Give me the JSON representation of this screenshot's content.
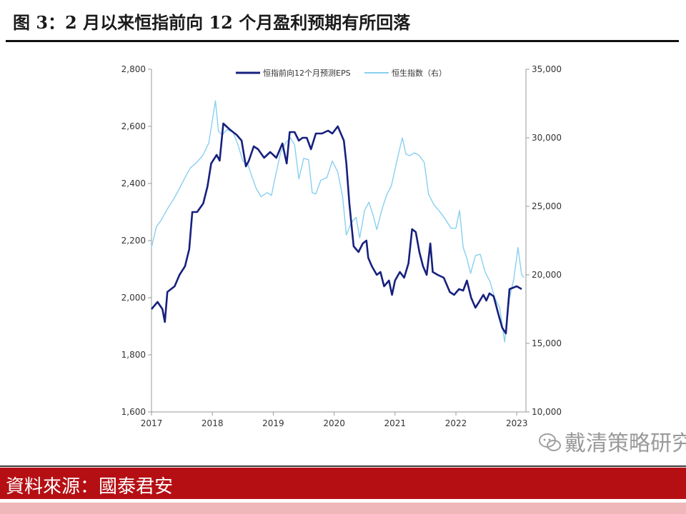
{
  "figure_title": "图 3：2 月以来恒指前向 12 个月盈利预期有所回落",
  "source": "資料來源：國泰君安",
  "watermark": "戴清策略研究",
  "colors": {
    "eps_line": "#16207e",
    "hsi_line": "#89cff0",
    "source_bar": "#b50f14",
    "pink_strip": "#f0b7ba"
  },
  "chart_data": {
    "type": "line",
    "title": "",
    "xlabel": "",
    "ylabel": "",
    "x_ticks": [
      "2017",
      "2018",
      "2019",
      "2020",
      "2021",
      "2022",
      "2023"
    ],
    "left_axis": {
      "min": 1600,
      "max": 2800,
      "ticks": [
        "1,600",
        "1,800",
        "2,000",
        "2,200",
        "2,400",
        "2,600",
        "2,800"
      ]
    },
    "right_axis": {
      "min": 10000,
      "max": 35000,
      "ticks": [
        "10,000",
        "15,000",
        "20,000",
        "25,000",
        "30,000",
        "35,000"
      ]
    },
    "legend_position": "top",
    "grid": false,
    "series": [
      {
        "name": "恒指前向12个月预测EPS",
        "axis": "left",
        "points": [
          [
            2017.0,
            1960
          ],
          [
            2017.1,
            1985
          ],
          [
            2017.18,
            1960
          ],
          [
            2017.22,
            1915
          ],
          [
            2017.26,
            2020
          ],
          [
            2017.38,
            2040
          ],
          [
            2017.46,
            2080
          ],
          [
            2017.55,
            2110
          ],
          [
            2017.62,
            2170
          ],
          [
            2017.67,
            2300
          ],
          [
            2017.75,
            2300
          ],
          [
            2017.85,
            2330
          ],
          [
            2017.92,
            2390
          ],
          [
            2017.98,
            2470
          ],
          [
            2018.07,
            2500
          ],
          [
            2018.12,
            2480
          ],
          [
            2018.18,
            2610
          ],
          [
            2018.28,
            2590
          ],
          [
            2018.4,
            2570
          ],
          [
            2018.48,
            2550
          ],
          [
            2018.55,
            2460
          ],
          [
            2018.6,
            2480
          ],
          [
            2018.68,
            2530
          ],
          [
            2018.75,
            2520
          ],
          [
            2018.85,
            2490
          ],
          [
            2018.95,
            2510
          ],
          [
            2019.05,
            2490
          ],
          [
            2019.15,
            2540
          ],
          [
            2019.22,
            2470
          ],
          [
            2019.27,
            2580
          ],
          [
            2019.35,
            2580
          ],
          [
            2019.42,
            2550
          ],
          [
            2019.48,
            2560
          ],
          [
            2019.55,
            2560
          ],
          [
            2019.62,
            2520
          ],
          [
            2019.7,
            2575
          ],
          [
            2019.8,
            2575
          ],
          [
            2019.9,
            2585
          ],
          [
            2019.97,
            2575
          ],
          [
            2020.06,
            2600
          ],
          [
            2020.1,
            2580
          ],
          [
            2020.16,
            2550
          ],
          [
            2020.2,
            2470
          ],
          [
            2020.25,
            2330
          ],
          [
            2020.32,
            2180
          ],
          [
            2020.4,
            2160
          ],
          [
            2020.47,
            2190
          ],
          [
            2020.53,
            2200
          ],
          [
            2020.56,
            2140
          ],
          [
            2020.62,
            2110
          ],
          [
            2020.7,
            2080
          ],
          [
            2020.76,
            2090
          ],
          [
            2020.82,
            2040
          ],
          [
            2020.9,
            2060
          ],
          [
            2020.95,
            2010
          ],
          [
            2021.0,
            2060
          ],
          [
            2021.08,
            2090
          ],
          [
            2021.15,
            2070
          ],
          [
            2021.22,
            2120
          ],
          [
            2021.28,
            2240
          ],
          [
            2021.34,
            2230
          ],
          [
            2021.4,
            2160
          ],
          [
            2021.46,
            2110
          ],
          [
            2021.52,
            2080
          ],
          [
            2021.58,
            2190
          ],
          [
            2021.62,
            2090
          ],
          [
            2021.7,
            2080
          ],
          [
            2021.8,
            2070
          ],
          [
            2021.9,
            2020
          ],
          [
            2021.97,
            2010
          ],
          [
            2022.05,
            2030
          ],
          [
            2022.12,
            2025
          ],
          [
            2022.18,
            2060
          ],
          [
            2022.25,
            2000
          ],
          [
            2022.32,
            1965
          ],
          [
            2022.38,
            1985
          ],
          [
            2022.45,
            2010
          ],
          [
            2022.5,
            1990
          ],
          [
            2022.55,
            2015
          ],
          [
            2022.62,
            2005
          ],
          [
            2022.7,
            1940
          ],
          [
            2022.76,
            1895
          ],
          [
            2022.82,
            1875
          ],
          [
            2022.88,
            2030
          ],
          [
            2022.94,
            2035
          ],
          [
            2023.0,
            2040
          ],
          [
            2023.08,
            2030
          ]
        ]
      },
      {
        "name": "恒生指数（右）",
        "axis": "right",
        "points": [
          [
            2017.0,
            22000
          ],
          [
            2017.08,
            23500
          ],
          [
            2017.16,
            24000
          ],
          [
            2017.26,
            24800
          ],
          [
            2017.36,
            25500
          ],
          [
            2017.46,
            26300
          ],
          [
            2017.55,
            27100
          ],
          [
            2017.64,
            27800
          ],
          [
            2017.74,
            28200
          ],
          [
            2017.84,
            28700
          ],
          [
            2017.94,
            29600
          ],
          [
            2018.05,
            32700
          ],
          [
            2018.1,
            30500
          ],
          [
            2018.16,
            30200
          ],
          [
            2018.24,
            30600
          ],
          [
            2018.34,
            30400
          ],
          [
            2018.42,
            29500
          ],
          [
            2018.5,
            28300
          ],
          [
            2018.58,
            28100
          ],
          [
            2018.64,
            27300
          ],
          [
            2018.72,
            26300
          ],
          [
            2018.8,
            25700
          ],
          [
            2018.9,
            26000
          ],
          [
            2018.97,
            25800
          ],
          [
            2019.05,
            27500
          ],
          [
            2019.12,
            28900
          ],
          [
            2019.2,
            29600
          ],
          [
            2019.28,
            30000
          ],
          [
            2019.35,
            29500
          ],
          [
            2019.42,
            27000
          ],
          [
            2019.5,
            28500
          ],
          [
            2019.58,
            28400
          ],
          [
            2019.64,
            26000
          ],
          [
            2019.7,
            25900
          ],
          [
            2019.78,
            26900
          ],
          [
            2019.88,
            27100
          ],
          [
            2019.97,
            28300
          ],
          [
            2020.06,
            27500
          ],
          [
            2020.14,
            25700
          ],
          [
            2020.2,
            22900
          ],
          [
            2020.28,
            23800
          ],
          [
            2020.36,
            24200
          ],
          [
            2020.42,
            22700
          ],
          [
            2020.5,
            24700
          ],
          [
            2020.57,
            25300
          ],
          [
            2020.63,
            24500
          ],
          [
            2020.7,
            23300
          ],
          [
            2020.78,
            24700
          ],
          [
            2020.86,
            25800
          ],
          [
            2020.94,
            26500
          ],
          [
            2021.04,
            28500
          ],
          [
            2021.12,
            30000
          ],
          [
            2021.18,
            28800
          ],
          [
            2021.24,
            28700
          ],
          [
            2021.32,
            28900
          ],
          [
            2021.4,
            28700
          ],
          [
            2021.48,
            28200
          ],
          [
            2021.55,
            25900
          ],
          [
            2021.64,
            25100
          ],
          [
            2021.72,
            24700
          ],
          [
            2021.82,
            24100
          ],
          [
            2021.92,
            23400
          ],
          [
            2022.0,
            23400
          ],
          [
            2022.06,
            24700
          ],
          [
            2022.12,
            22000
          ],
          [
            2022.18,
            21200
          ],
          [
            2022.24,
            20100
          ],
          [
            2022.32,
            21400
          ],
          [
            2022.4,
            21500
          ],
          [
            2022.48,
            20200
          ],
          [
            2022.56,
            19500
          ],
          [
            2022.64,
            18300
          ],
          [
            2022.72,
            17600
          ],
          [
            2022.8,
            15100
          ],
          [
            2022.88,
            18300
          ],
          [
            2022.95,
            19700
          ],
          [
            2023.02,
            22000
          ],
          [
            2023.08,
            20000
          ],
          [
            2023.12,
            19800
          ]
        ]
      }
    ]
  }
}
